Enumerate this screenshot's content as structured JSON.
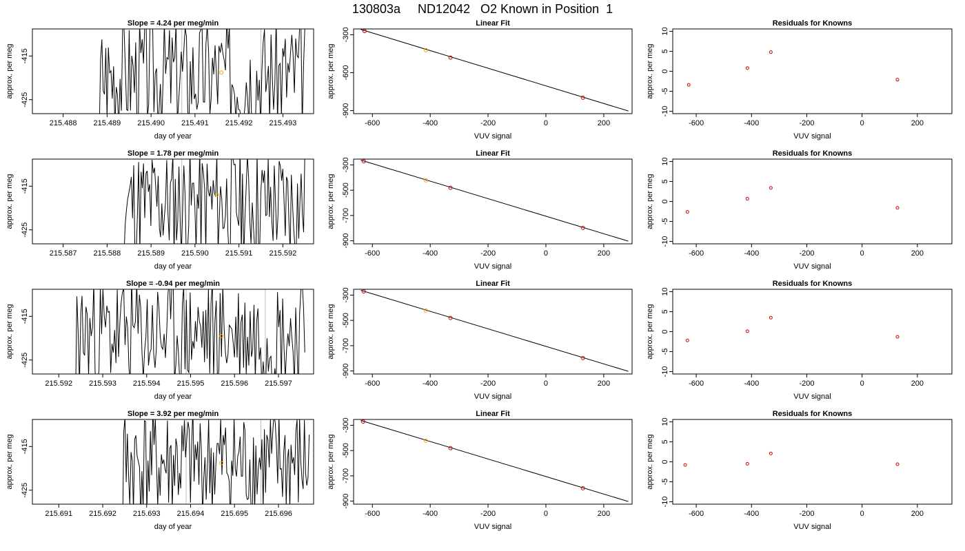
{
  "main_title": "130803a     ND12042   O2 Known in Position  1",
  "colors": {
    "trace": "#000000",
    "marker_orange": "#ffa500",
    "marker_red": "#cc0000",
    "gray_line": "#bebebe",
    "fit_line": "#000000"
  },
  "chart_data": [
    {
      "type": "line",
      "panel": "time-series",
      "title": "Slope =  4.24  per meg/min",
      "xlabel": "day of year",
      "ylabel": "approx. per meg",
      "xlim": [
        215.4873,
        215.4937
      ],
      "ylim": [
        -428.2,
        -408.8
      ],
      "xticks": [
        "215.488",
        "215.489",
        "215.490",
        "215.491",
        "215.492",
        "215.493"
      ],
      "yticks": [
        "-415",
        "-425"
      ],
      "xtick_values": [
        215.488,
        215.489,
        215.49,
        215.491,
        215.492,
        215.493
      ],
      "ytick_values": [
        -415,
        -425
      ],
      "window_lines": [
        215.4907,
        215.4925
      ],
      "highlight_point": [
        215.4916,
        -418.8
      ],
      "trace_x_start": 215.4882,
      "trace_x_end": 215.4935,
      "trace_points": 180,
      "trace_seed": 3
    },
    {
      "type": "scatter",
      "panel": "linear-fit",
      "title": "Linear Fit",
      "xlabel": "VUV signal",
      "ylabel": "approx. per meg",
      "xlim": [
        -665,
        298
      ],
      "ylim": [
        -924,
        -254
      ],
      "xticks": [
        "-600",
        "-400",
        "-200",
        "0",
        "200"
      ],
      "yticks": [
        "-300",
        "-600",
        "-900"
      ],
      "xtick_values": [
        -600,
        -400,
        -200,
        0,
        200
      ],
      "ytick_values": [
        -300,
        -600,
        -900
      ],
      "points": [
        {
          "x": -627,
          "y": -271,
          "color": "red"
        },
        {
          "x": -415,
          "y": -422,
          "color": "orange"
        },
        {
          "x": -330,
          "y": -481,
          "color": "red"
        },
        {
          "x": 128,
          "y": -798,
          "color": "red"
        }
      ],
      "fit_line": {
        "x1": -640,
        "y1": -258,
        "x2": 285,
        "y2": -903
      }
    },
    {
      "type": "scatter",
      "panel": "residuals",
      "title": "Residuals for Knowns",
      "xlabel": "VUV signal",
      "ylabel": "approx. per meg",
      "xlim": [
        -685,
        325
      ],
      "ylim": [
        -10.6,
        10.6
      ],
      "xticks": [
        "-600",
        "-400",
        "-200",
        "0",
        "200"
      ],
      "yticks": [
        "10",
        "5",
        "0",
        "-5",
        "-10"
      ],
      "xtick_values": [
        -600,
        -400,
        -200,
        0,
        200
      ],
      "ytick_values": [
        10,
        5,
        0,
        -5,
        -10
      ],
      "points": [
        {
          "x": -627,
          "y": -3.4
        },
        {
          "x": -415,
          "y": 0.8
        },
        {
          "x": -330,
          "y": 4.8
        },
        {
          "x": 128,
          "y": -2.1
        }
      ]
    },
    {
      "type": "line",
      "panel": "time-series",
      "title": "Slope =  1.78  per meg/min",
      "xlabel": "day of year",
      "ylabel": "approx. per meg",
      "xlim": [
        215.5863,
        215.5927
      ],
      "ylim": [
        -428.2,
        -408.8
      ],
      "xticks": [
        "215.587",
        "215.588",
        "215.589",
        "215.590",
        "215.591",
        "215.592"
      ],
      "yticks": [
        "-415",
        "-425"
      ],
      "xtick_values": [
        215.587,
        215.588,
        215.589,
        215.59,
        215.591,
        215.592
      ],
      "ytick_values": [
        -415,
        -425
      ],
      "window_lines": [
        215.5897,
        215.5914
      ],
      "highlight_point": [
        215.5905,
        -417.0
      ],
      "trace_x_start": 215.5878,
      "trace_x_end": 215.5925,
      "trace_points": 170,
      "trace_seed": 11
    },
    {
      "type": "scatter",
      "panel": "linear-fit",
      "title": "Linear Fit",
      "xlabel": "VUV signal",
      "ylabel": "approx. per meg",
      "xlim": [
        -665,
        298
      ],
      "ylim": [
        -924,
        -254
      ],
      "xticks": [
        "-600",
        "-400",
        "-200",
        "0",
        "200"
      ],
      "yticks": [
        "-300",
        "-500",
        "-700",
        "-900"
      ],
      "xtick_values": [
        -600,
        -400,
        -200,
        0,
        200
      ],
      "ytick_values": [
        -300,
        -500,
        -700,
        -900
      ],
      "points": [
        {
          "x": -630,
          "y": -271,
          "color": "red"
        },
        {
          "x": -415,
          "y": -422,
          "color": "orange"
        },
        {
          "x": -330,
          "y": -481,
          "color": "red"
        },
        {
          "x": 128,
          "y": -798,
          "color": "red"
        }
      ],
      "fit_line": {
        "x1": -640,
        "y1": -262,
        "x2": 285,
        "y2": -903
      }
    },
    {
      "type": "scatter",
      "panel": "residuals",
      "title": "Residuals for Knowns",
      "xlabel": "VUV signal",
      "ylabel": "approx. per meg",
      "xlim": [
        -685,
        325
      ],
      "ylim": [
        -10.6,
        10.6
      ],
      "xticks": [
        "-600",
        "-400",
        "-200",
        "0",
        "200"
      ],
      "yticks": [
        "10",
        "5",
        "0",
        "-5",
        "-10"
      ],
      "xtick_values": [
        -600,
        -400,
        -200,
        0,
        200
      ],
      "ytick_values": [
        10,
        5,
        0,
        -5,
        -10
      ],
      "points": [
        {
          "x": -632,
          "y": -2.6
        },
        {
          "x": -415,
          "y": 0.7
        },
        {
          "x": -330,
          "y": 3.4
        },
        {
          "x": 128,
          "y": -1.6
        }
      ]
    },
    {
      "type": "line",
      "panel": "time-series",
      "title": "Slope =  -0.94  per meg/min",
      "xlabel": "day of year",
      "ylabel": "approx. per meg",
      "xlim": [
        215.5914,
        215.5978
      ],
      "ylim": [
        -428.2,
        -408.8
      ],
      "xticks": [
        "215.592",
        "215.593",
        "215.594",
        "215.595",
        "215.596",
        "215.597"
      ],
      "yticks": [
        "-415",
        "-425"
      ],
      "xtick_values": [
        215.592,
        215.593,
        215.594,
        215.595,
        215.596,
        215.597
      ],
      "ytick_values": [
        -415,
        -425
      ],
      "window_lines": [
        215.5949,
        215.5967
      ],
      "highlight_point": [
        215.5957,
        -419.5
      ],
      "trace_x_start": 215.5917,
      "trace_x_end": 215.5976,
      "trace_points": 200,
      "trace_seed": 23
    },
    {
      "type": "scatter",
      "panel": "linear-fit",
      "title": "Linear Fit",
      "xlabel": "VUV signal",
      "ylabel": "approx. per meg",
      "xlim": [
        -665,
        298
      ],
      "ylim": [
        -924,
        -254
      ],
      "xticks": [
        "-600",
        "-400",
        "-200",
        "0",
        "200"
      ],
      "yticks": [
        "-300",
        "-500",
        "-700",
        "-900"
      ],
      "xtick_values": [
        -600,
        -400,
        -200,
        0,
        200
      ],
      "ytick_values": [
        -300,
        -500,
        -700,
        -900
      ],
      "points": [
        {
          "x": -630,
          "y": -271,
          "color": "red"
        },
        {
          "x": -415,
          "y": -422,
          "color": "orange"
        },
        {
          "x": -330,
          "y": -481,
          "color": "red"
        },
        {
          "x": 128,
          "y": -798,
          "color": "red"
        }
      ],
      "fit_line": {
        "x1": -640,
        "y1": -262,
        "x2": 285,
        "y2": -903
      }
    },
    {
      "type": "scatter",
      "panel": "residuals",
      "title": "Residuals for Knowns",
      "xlabel": "VUV signal",
      "ylabel": "approx. per meg",
      "xlim": [
        -685,
        325
      ],
      "ylim": [
        -10.6,
        10.6
      ],
      "xticks": [
        "-600",
        "-400",
        "-200",
        "0",
        "200"
      ],
      "yticks": [
        "10",
        "5",
        "0",
        "-5",
        "-10"
      ],
      "xtick_values": [
        -600,
        -400,
        -200,
        0,
        200
      ],
      "ytick_values": [
        10,
        5,
        0,
        -5,
        -10
      ],
      "points": [
        {
          "x": -632,
          "y": -2.2
        },
        {
          "x": -415,
          "y": 0.1
        },
        {
          "x": -330,
          "y": 3.5
        },
        {
          "x": 128,
          "y": -1.3
        }
      ]
    },
    {
      "type": "line",
      "panel": "time-series",
      "title": "Slope =  3.92  per meg/min",
      "xlabel": "day of year",
      "ylabel": "approx. per meg",
      "xlim": [
        215.6904,
        215.6968
      ],
      "ylim": [
        -428.2,
        -408.8
      ],
      "xticks": [
        "215.691",
        "215.692",
        "215.693",
        "215.694",
        "215.695",
        "215.696"
      ],
      "yticks": [
        "-415",
        "-425"
      ],
      "xtick_values": [
        215.691,
        215.692,
        215.693,
        215.694,
        215.695,
        215.696
      ],
      "ytick_values": [
        -415,
        -425
      ],
      "window_lines": [
        215.6939,
        215.6956
      ],
      "highlight_point": [
        215.6947,
        -418.8
      ],
      "trace_x_start": 215.6919,
      "trace_x_end": 215.6967,
      "trace_points": 175,
      "trace_seed": 41
    },
    {
      "type": "scatter",
      "panel": "linear-fit",
      "title": "Linear Fit",
      "xlabel": "VUV signal",
      "ylabel": "approx. per meg",
      "xlim": [
        -665,
        298
      ],
      "ylim": [
        -924,
        -254
      ],
      "xticks": [
        "-600",
        "-400",
        "-200",
        "0",
        "200"
      ],
      "yticks": [
        "-300",
        "-500",
        "-700",
        "-900"
      ],
      "xtick_values": [
        -600,
        -400,
        -200,
        0,
        200
      ],
      "ytick_values": [
        -300,
        -500,
        -700,
        -900
      ],
      "points": [
        {
          "x": -632,
          "y": -271,
          "color": "red"
        },
        {
          "x": -415,
          "y": -422,
          "color": "orange"
        },
        {
          "x": -330,
          "y": -481,
          "color": "red"
        },
        {
          "x": 128,
          "y": -798,
          "color": "red"
        }
      ],
      "fit_line": {
        "x1": -640,
        "y1": -262,
        "x2": 285,
        "y2": -903
      }
    },
    {
      "type": "scatter",
      "panel": "residuals",
      "title": "Residuals for Knowns",
      "xlabel": "VUV signal",
      "ylabel": "approx. per meg",
      "xlim": [
        -685,
        325
      ],
      "ylim": [
        -10.6,
        10.6
      ],
      "xticks": [
        "-600",
        "-400",
        "-200",
        "0",
        "200"
      ],
      "yticks": [
        "10",
        "5",
        "0",
        "-5",
        "-10"
      ],
      "xtick_values": [
        -600,
        -400,
        -200,
        0,
        200
      ],
      "ytick_values": [
        10,
        5,
        0,
        -5,
        -10
      ],
      "points": [
        {
          "x": -640,
          "y": -0.8
        },
        {
          "x": -415,
          "y": -0.5
        },
        {
          "x": -330,
          "y": 2.1
        },
        {
          "x": 128,
          "y": -0.6
        }
      ]
    }
  ]
}
